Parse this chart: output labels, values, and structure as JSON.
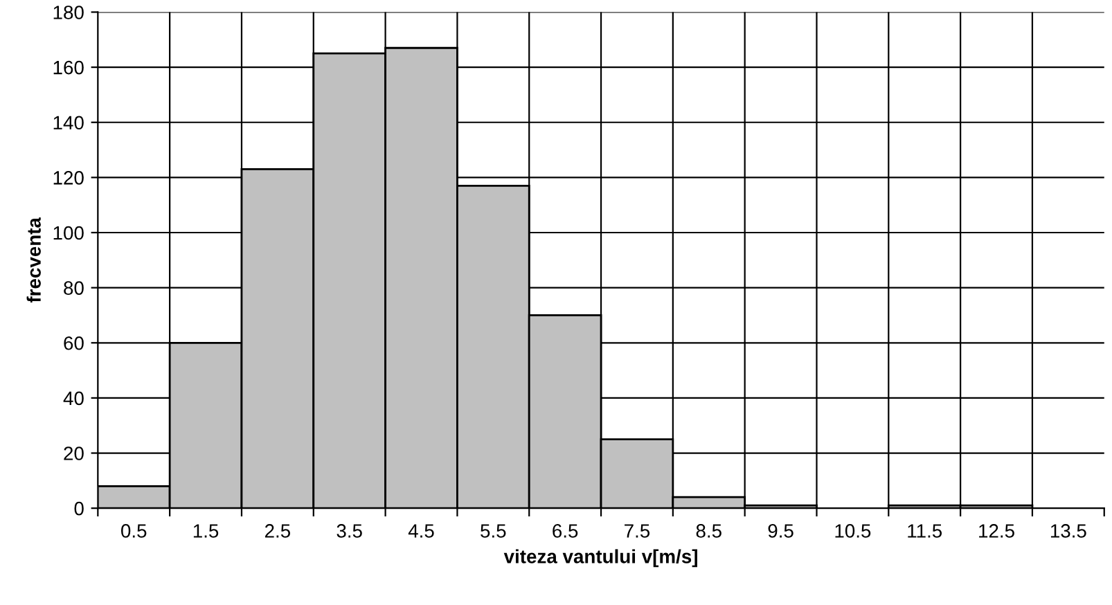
{
  "chart_data": {
    "type": "bar",
    "xlabel": "viteza vantului v[m/s]",
    "ylabel": "frecventa",
    "categories": [
      "0.5",
      "1.5",
      "2.5",
      "3.5",
      "4.5",
      "5.5",
      "6.5",
      "7.5",
      "8.5",
      "9.5",
      "10.5",
      "11.5",
      "12.5",
      "13.5"
    ],
    "values": [
      8,
      60,
      123,
      165,
      167,
      117,
      70,
      25,
      4,
      1,
      0,
      1,
      1,
      0
    ],
    "color": "#c0c0c0",
    "ylim": [
      0,
      180
    ],
    "yticks": [
      0,
      20,
      40,
      60,
      80,
      100,
      120,
      140,
      160,
      180
    ],
    "grid": true
  }
}
